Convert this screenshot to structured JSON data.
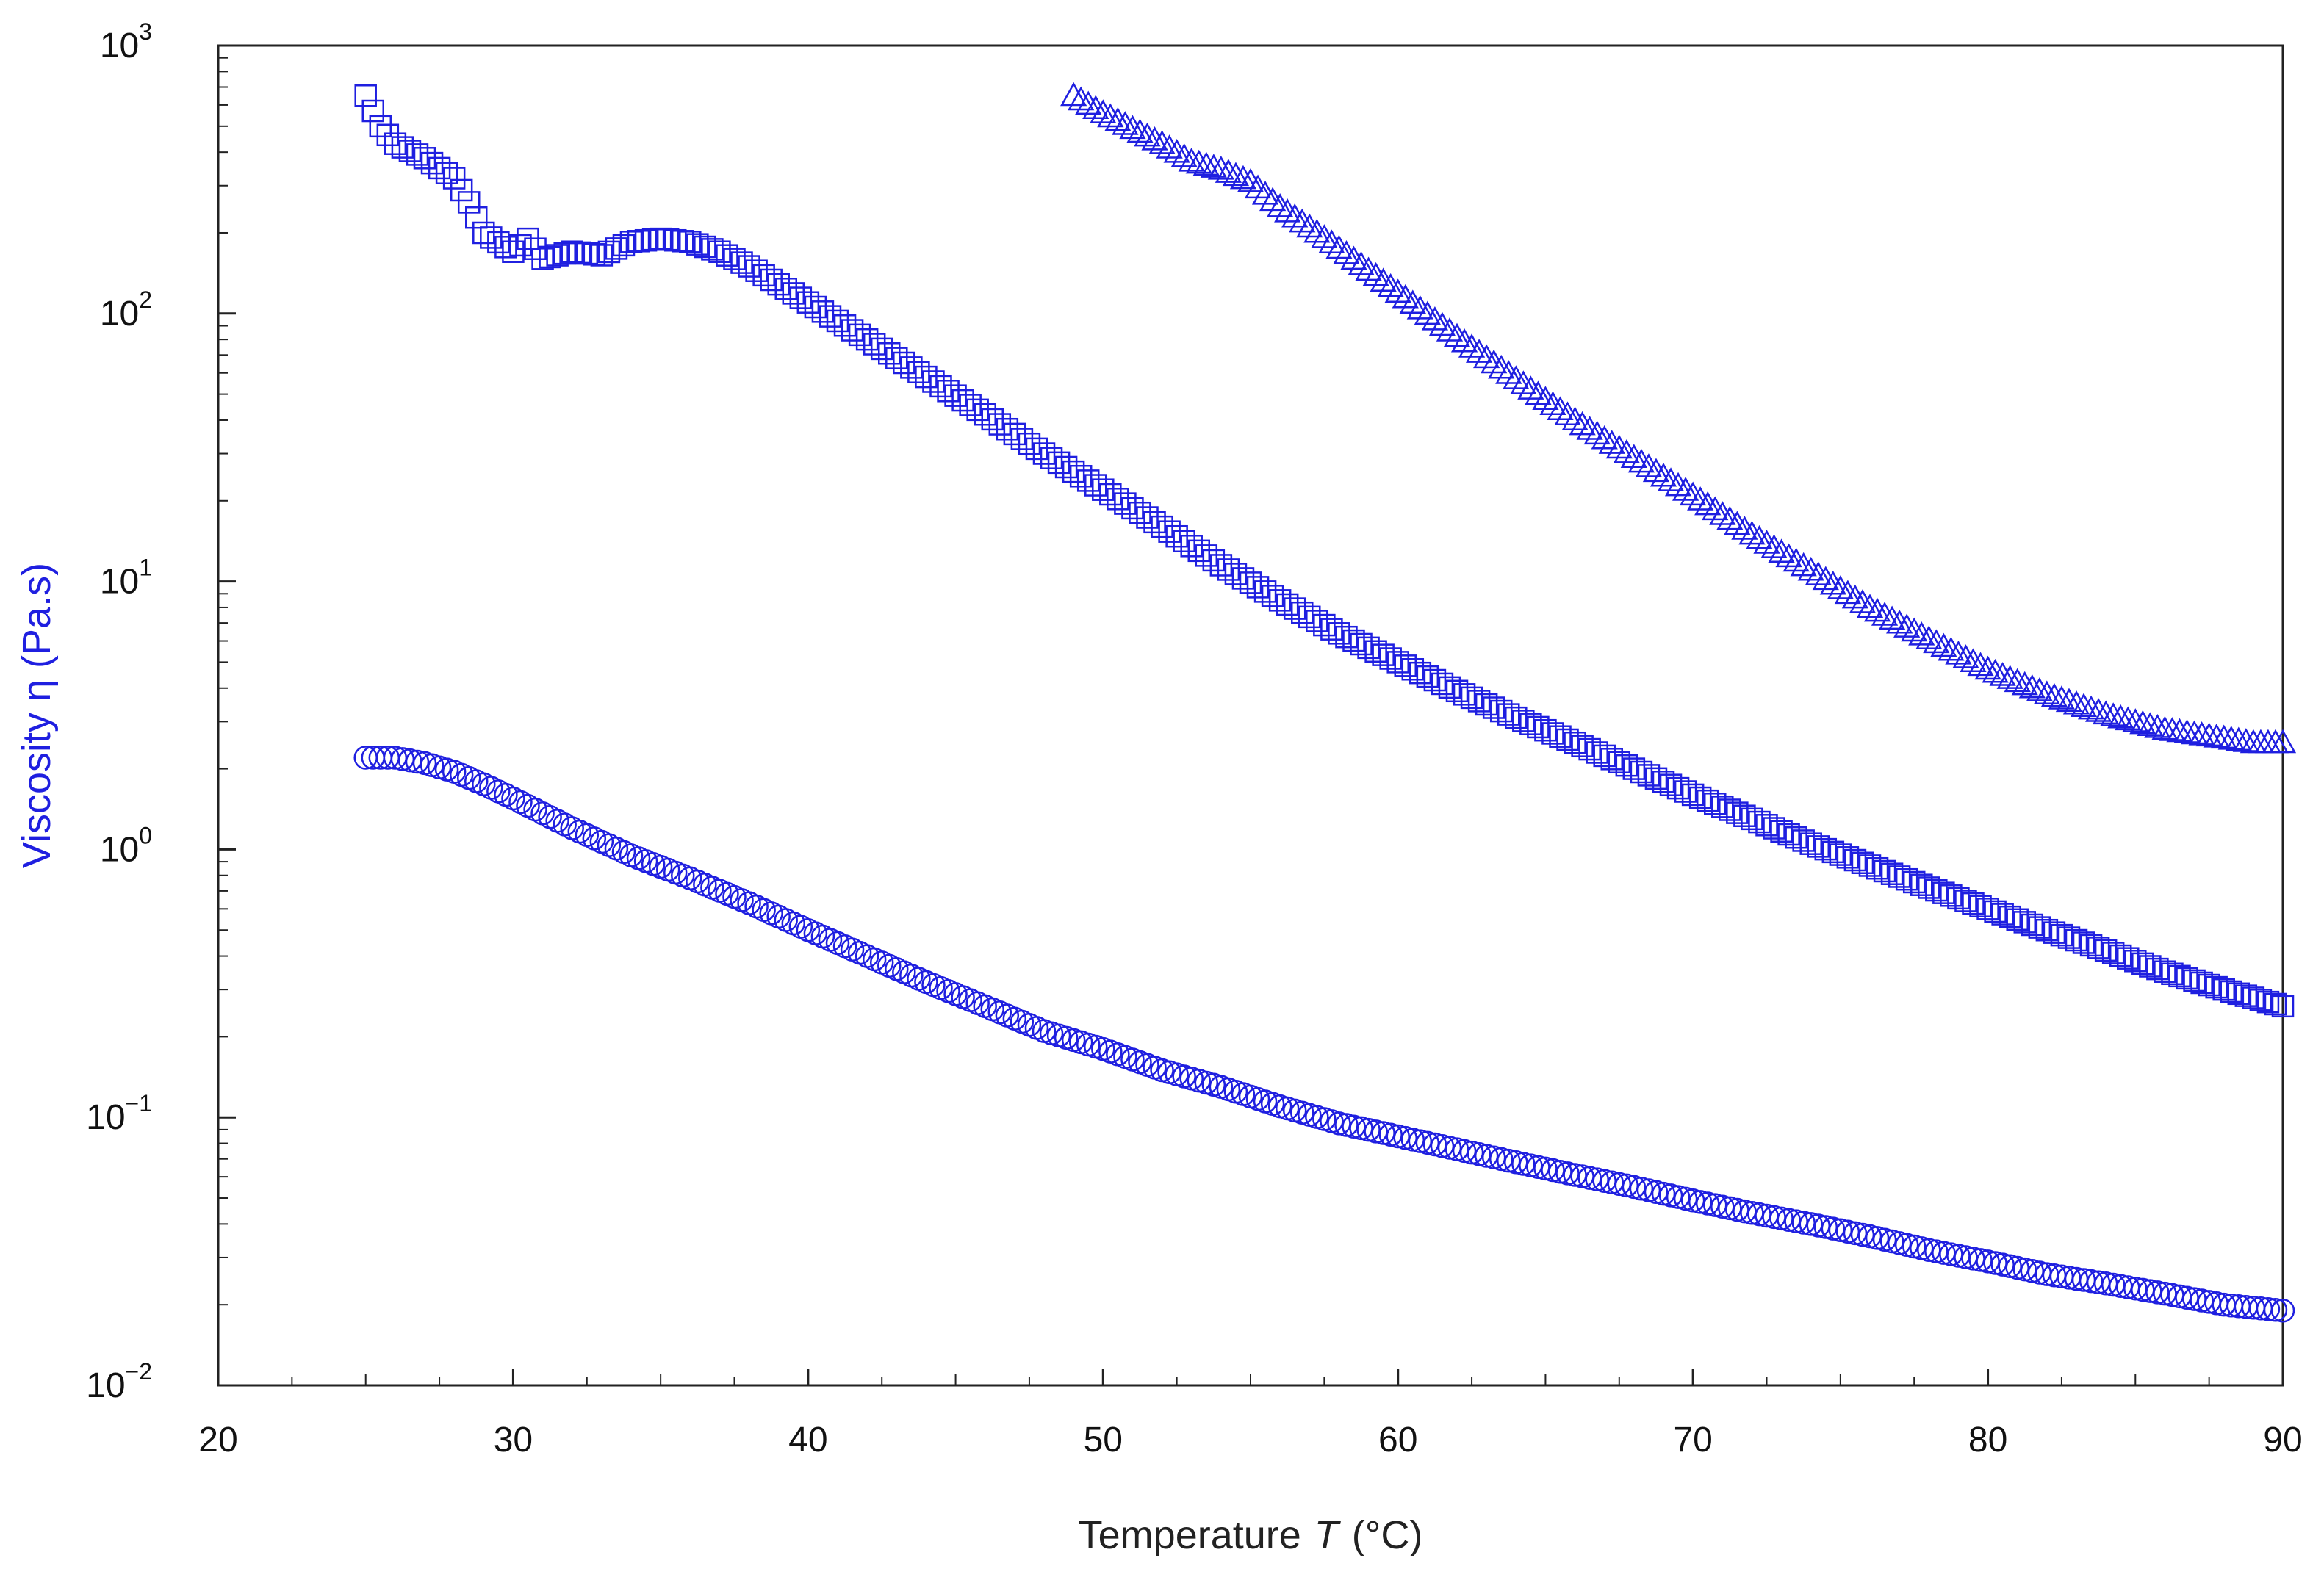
{
  "chart_data": {
    "type": "scatter",
    "title": "",
    "xlabel": "Temperature",
    "xlabel_symbol": "T",
    "xlabel_unit": "(°C)",
    "ylabel": "Viscosity η (Pa.s)",
    "xlim": [
      20,
      90
    ],
    "ylim": [
      0.01,
      1000
    ],
    "yscale": "log",
    "grid": false,
    "legend": "none",
    "x_ticks": [
      "20",
      "30",
      "40",
      "50",
      "60",
      "70",
      "80",
      "90"
    ],
    "y_ticks": [
      {
        "base": "10",
        "exp": "3",
        "value": 1000
      },
      {
        "base": "10",
        "exp": "2",
        "value": 100
      },
      {
        "base": "10",
        "exp": "1",
        "value": 10
      },
      {
        "base": "10",
        "exp": "0",
        "value": 1
      },
      {
        "base": "10",
        "exp": "−1",
        "value": 0.1
      },
      {
        "base": "10",
        "exp": "−2",
        "value": 0.01
      }
    ],
    "color": "#1f1fe0",
    "series": [
      {
        "name": "triangles",
        "marker": "triangle",
        "x": [
          49,
          50,
          51,
          52,
          53,
          54,
          55,
          56,
          57,
          58,
          60,
          62,
          64,
          66,
          68,
          70,
          72,
          74,
          76,
          78,
          80,
          82,
          84,
          86,
          88,
          89,
          90
        ],
        "y": [
          650,
          560,
          490,
          430,
          370,
          345,
          310,
          250,
          210,
          175,
          120,
          82,
          57,
          40,
          29,
          21,
          15,
          11,
          8.0,
          6.1,
          4.7,
          3.8,
          3.2,
          2.8,
          2.6,
          2.5,
          2.5
        ]
      },
      {
        "name": "squares",
        "marker": "square",
        "x": [
          25,
          25.5,
          26,
          27,
          28,
          28.5,
          29,
          30,
          30.5,
          31,
          32,
          33,
          34,
          35,
          36,
          37,
          38,
          40,
          42,
          44,
          46,
          48,
          50,
          52,
          54,
          56,
          58,
          60,
          62,
          64,
          66,
          68,
          70,
          72,
          74,
          76,
          78,
          80,
          82,
          84,
          86,
          88,
          90
        ],
        "y": [
          650,
          500,
          430,
          380,
          320,
          260,
          200,
          170,
          190,
          160,
          170,
          165,
          185,
          190,
          185,
          170,
          150,
          110,
          80,
          58,
          42,
          30,
          22,
          16,
          11.5,
          8.5,
          6.4,
          5.0,
          3.9,
          3.1,
          2.5,
          2.0,
          1.6,
          1.3,
          1.05,
          0.87,
          0.72,
          0.6,
          0.5,
          0.42,
          0.35,
          0.3,
          0.26
        ]
      },
      {
        "name": "circles",
        "marker": "circle",
        "x": [
          25,
          26,
          27,
          28,
          29,
          30,
          32,
          34,
          36,
          38,
          40,
          42,
          44,
          46,
          48,
          50,
          52,
          54,
          56,
          58,
          60,
          62,
          64,
          66,
          68,
          70,
          72,
          74,
          76,
          78,
          80,
          82,
          84,
          86,
          88,
          90
        ],
        "y": [
          2.2,
          2.2,
          2.1,
          1.95,
          1.75,
          1.55,
          1.2,
          0.95,
          0.78,
          0.63,
          0.5,
          0.4,
          0.32,
          0.26,
          0.21,
          0.18,
          0.15,
          0.13,
          0.11,
          0.095,
          0.085,
          0.076,
          0.068,
          0.061,
          0.055,
          0.049,
          0.044,
          0.04,
          0.036,
          0.032,
          0.029,
          0.026,
          0.024,
          0.022,
          0.02,
          0.019
        ]
      }
    ]
  }
}
